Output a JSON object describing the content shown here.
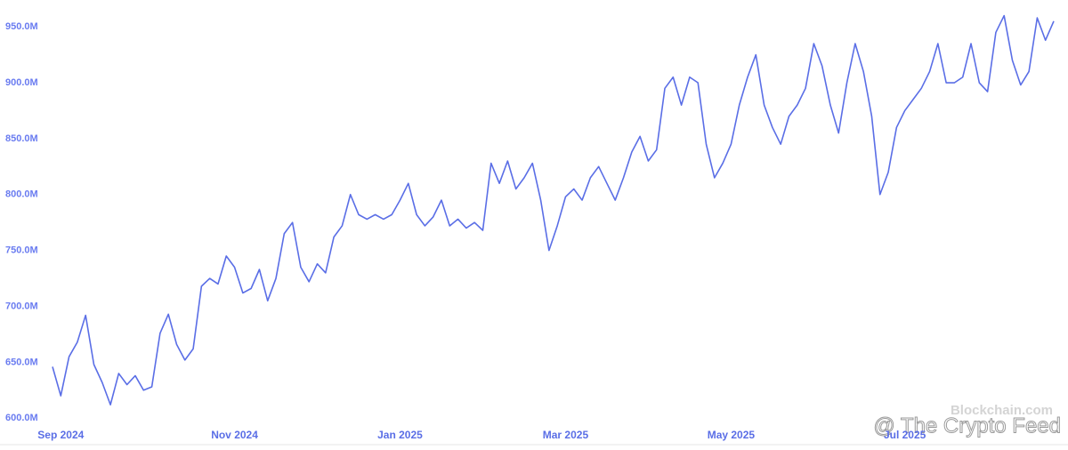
{
  "chart_data": {
    "type": "line",
    "categories": [
      null,
      "Sep 2024",
      null,
      null,
      null,
      null,
      null,
      null,
      null,
      null,
      null,
      null,
      null,
      null,
      null,
      null,
      null,
      null,
      null,
      null,
      null,
      null,
      "Nov 2024",
      null,
      null,
      null,
      null,
      null,
      null,
      null,
      null,
      null,
      null,
      null,
      null,
      null,
      null,
      null,
      null,
      null,
      null,
      null,
      "Jan 2025",
      null,
      null,
      null,
      null,
      null,
      null,
      null,
      null,
      null,
      null,
      null,
      null,
      null,
      null,
      null,
      null,
      null,
      null,
      null,
      "Mar 2025",
      null,
      null,
      null,
      null,
      null,
      null,
      null,
      null,
      null,
      null,
      null,
      null,
      null,
      null,
      null,
      null,
      null,
      null,
      null,
      "May 2025",
      null,
      null,
      null,
      null,
      null,
      null,
      null,
      null,
      null,
      null,
      null,
      null,
      null,
      null,
      null,
      null,
      null,
      null,
      null,
      null,
      "Jul 2025",
      null,
      null,
      null,
      null,
      null,
      null,
      null,
      null,
      null,
      null,
      null,
      null,
      null,
      null,
      null,
      null,
      null,
      null
    ],
    "values": [
      646,
      620,
      655,
      668,
      692,
      648,
      632,
      612,
      640,
      630,
      638,
      625,
      628,
      676,
      693,
      666,
      652,
      662,
      718,
      725,
      720,
      745,
      735,
      712,
      716,
      733,
      705,
      725,
      765,
      775,
      735,
      722,
      738,
      730,
      762,
      772,
      800,
      782,
      778,
      782,
      778,
      782,
      795,
      810,
      782,
      772,
      780,
      795,
      772,
      778,
      770,
      775,
      768,
      828,
      810,
      830,
      805,
      815,
      828,
      795,
      750,
      772,
      798,
      805,
      795,
      815,
      825,
      810,
      795,
      815,
      838,
      852,
      830,
      840,
      895,
      905,
      880,
      905,
      900,
      845,
      815,
      828,
      845,
      880,
      905,
      925,
      880,
      860,
      845,
      870,
      880,
      895,
      935,
      915,
      880,
      855,
      900,
      935,
      910,
      870,
      800,
      820,
      860,
      875,
      885,
      895,
      910,
      935,
      900,
      900,
      905,
      935,
      900,
      892,
      945,
      960,
      920,
      898,
      910,
      958,
      938,
      955
    ],
    "color": "#5a6ee6",
    "ylim": [
      597,
      970
    ],
    "yticks": [
      {
        "value": 600,
        "label": "600.0M"
      },
      {
        "value": 650,
        "label": "650.0M"
      },
      {
        "value": 700,
        "label": "700.0M"
      },
      {
        "value": 750,
        "label": "750.0M"
      },
      {
        "value": 800,
        "label": "800.0M"
      },
      {
        "value": 850,
        "label": "850.0M"
      },
      {
        "value": 900,
        "label": "900.0M"
      },
      {
        "value": 950,
        "label": "950.0M"
      }
    ],
    "grid": false,
    "watermarks": [
      "Blockchain.com",
      "@ The Crypto Feed"
    ]
  }
}
